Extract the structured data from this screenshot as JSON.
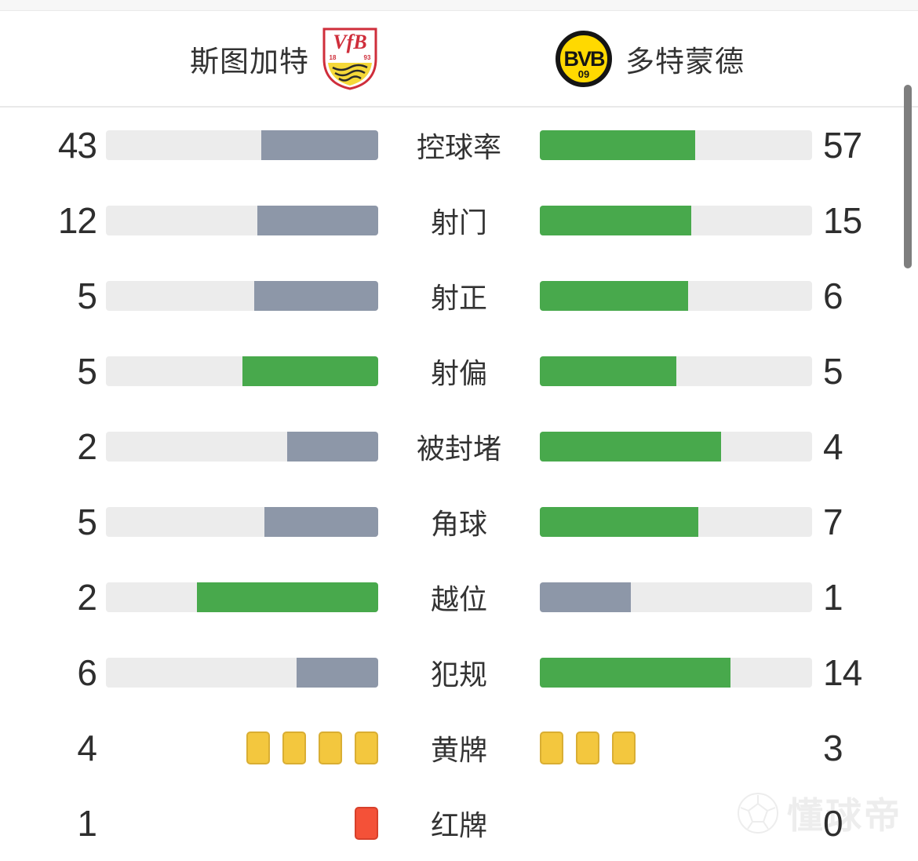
{
  "header": {
    "home_team": {
      "name": "斯图加特",
      "crest": "vfb-stuttgart-crest",
      "crest_initials": "VfB",
      "crest_year_left": "18",
      "crest_year_right": "93"
    },
    "away_team": {
      "name": "多特蒙德",
      "crest": "borussia-dortmund-crest",
      "crest_initials": "BVB",
      "crest_sub": "09"
    }
  },
  "chart_data": {
    "type": "bar",
    "subtype": "head-to-head-stat-comparison",
    "teams": [
      "斯图加特",
      "多特蒙德"
    ],
    "legend_colors": {
      "leading": "#48a94c",
      "trailing": "#8d97a8",
      "track": "#ececec"
    },
    "note": "bar fill fraction = value / (home + away); leading or tied side is green, trailing side is slate; card rows render one rectangle per card",
    "rows": [
      {
        "label": "控球率",
        "home": 43,
        "away": 57,
        "style": "bar"
      },
      {
        "label": "射门",
        "home": 12,
        "away": 15,
        "style": "bar"
      },
      {
        "label": "射正",
        "home": 5,
        "away": 6,
        "style": "bar"
      },
      {
        "label": "射偏",
        "home": 5,
        "away": 5,
        "style": "bar"
      },
      {
        "label": "被封堵",
        "home": 2,
        "away": 4,
        "style": "bar"
      },
      {
        "label": "角球",
        "home": 5,
        "away": 7,
        "style": "bar"
      },
      {
        "label": "越位",
        "home": 2,
        "away": 1,
        "style": "bar"
      },
      {
        "label": "犯规",
        "home": 6,
        "away": 14,
        "style": "bar"
      },
      {
        "label": "黄牌",
        "home": 4,
        "away": 3,
        "style": "cards",
        "card": "yellow"
      },
      {
        "label": "红牌",
        "home": 1,
        "away": 0,
        "style": "cards",
        "card": "red"
      }
    ]
  },
  "watermark": {
    "text": "懂球帝",
    "icon": "football-icon"
  },
  "colors": {
    "green": "#48a94c",
    "slate": "#8d97a8",
    "track": "#ececec",
    "yellow_card": "#f3c73e",
    "yellow_card_border": "#d9ae33",
    "red_card": "#f45138",
    "red_card_border": "#d7402b",
    "scrollbar": "#7e7e7e"
  }
}
